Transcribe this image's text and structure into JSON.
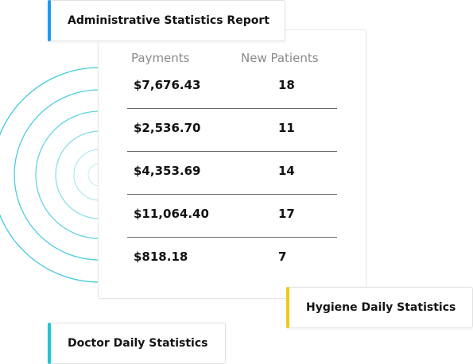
{
  "report_card": {
    "title": "Administrative Statistics Report",
    "accent_color": "#1e9bf0"
  },
  "table": {
    "headers": {
      "payments": "Payments",
      "new_patients": "New Patients"
    },
    "rows": [
      {
        "payments": "$7,676.43",
        "new_patients": "18"
      },
      {
        "payments": "$2,536.70",
        "new_patients": "11"
      },
      {
        "payments": "$4,353.69",
        "new_patients": "14"
      },
      {
        "payments": "$11,064.40",
        "new_patients": "17"
      },
      {
        "payments": "$818.18",
        "new_patients": "7"
      }
    ]
  },
  "tags": {
    "hygiene": {
      "label": "Hygiene Daily Statistics",
      "accent_color": "#f5c518"
    },
    "doctor": {
      "label": "Doctor Daily Statistics",
      "accent_color": "#1fc7d4"
    }
  },
  "decor": {
    "ring_color": "#1fc7d4"
  }
}
